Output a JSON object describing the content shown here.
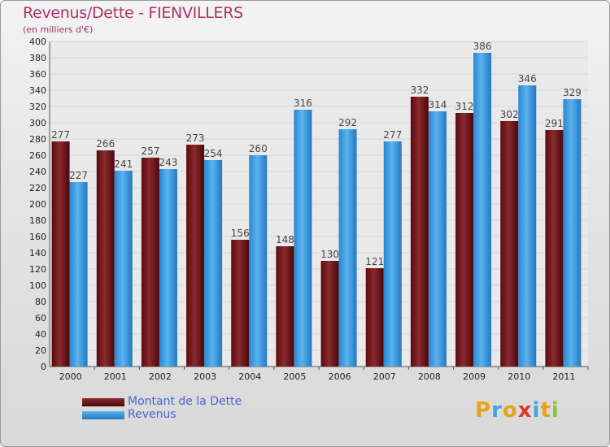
{
  "header": {
    "title": "Revenus/Dette - FIENVILLERS",
    "subtitle": "(en milliers d'€)"
  },
  "legend": {
    "items": [
      {
        "label": "Montant de la Dette",
        "color": "#6b0f14"
      },
      {
        "label": "Revenus",
        "color": "#3b9be0"
      }
    ]
  },
  "brand": {
    "text": "Proxiti",
    "letters": [
      {
        "char": "P",
        "color": "#e8a21a"
      },
      {
        "char": "r",
        "color": "#4aa0e0"
      },
      {
        "char": "o",
        "color": "#e8a21a"
      },
      {
        "char": "x",
        "color": "#d93a2b"
      },
      {
        "char": "i",
        "color": "#4aa0e0"
      },
      {
        "char": "t",
        "color": "#e8a21a"
      },
      {
        "char": "i",
        "color": "#8bc53f"
      }
    ]
  },
  "colors": {
    "dette": "#6b0f14",
    "revenus": "#3b9be0",
    "axis_text": "#222222",
    "label_text": "#444444",
    "gridline": "#d8d8d8"
  },
  "chart_data": {
    "type": "bar",
    "title": "Revenus/Dette - FIENVILLERS",
    "subtitle": "(en milliers d'€)",
    "categories": [
      "2000",
      "2001",
      "2002",
      "2003",
      "2004",
      "2005",
      "2006",
      "2007",
      "2008",
      "2009",
      "2010",
      "2011"
    ],
    "series": [
      {
        "name": "Montant de la Dette",
        "values": [
          277,
          266,
          257,
          273,
          156,
          148,
          130,
          121,
          332,
          312,
          302,
          291
        ]
      },
      {
        "name": "Revenus",
        "values": [
          227,
          241,
          243,
          254,
          260,
          316,
          292,
          277,
          314,
          386,
          346,
          329
        ]
      }
    ],
    "ylim": [
      0,
      400
    ],
    "ytick_step": 20,
    "grid": true,
    "legend_position": "bottom-left"
  }
}
